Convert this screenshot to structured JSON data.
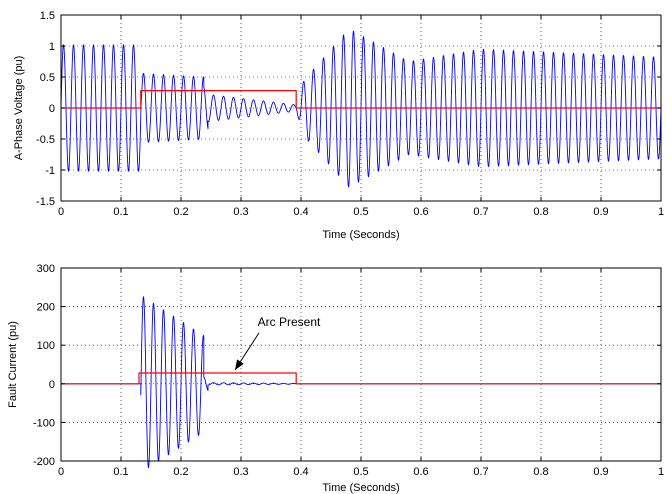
{
  "chart_data": [
    {
      "type": "line",
      "title": "",
      "xlabel": "Time (Seconds)",
      "ylabel": "A-Phase Voltage (pu)",
      "xlim": [
        0,
        1
      ],
      "ylim": [
        -1.5,
        1.5
      ],
      "xticks": [
        0,
        0.1,
        0.2,
        0.3,
        0.4,
        0.5,
        0.6,
        0.7,
        0.8,
        0.9,
        1
      ],
      "xtick_labels": [
        "0",
        "0.1",
        "0.2",
        "0.3",
        "0.4",
        "0.5",
        "0.6",
        "0.7",
        "0.8",
        "0.9",
        "1"
      ],
      "yticks": [
        1.5,
        1,
        0.5,
        0,
        -0.5,
        -1,
        -1.5
      ],
      "ytick_labels": [
        "1.5",
        "1",
        "0.5",
        "0",
        "-0.5",
        "-1",
        "-1.5"
      ],
      "grid": true,
      "series": [
        {
          "color": "#0000ff",
          "kind": "oscillation",
          "segments": [
            {
              "t": [
                0.0,
                0.133
              ],
              "amp": [
                1.02,
                1.02
              ]
            },
            {
              "t": [
                0.133,
                0.238
              ],
              "amp": [
                0.56,
                0.5
              ]
            },
            {
              "t": [
                0.238,
                0.245
              ],
              "amp": [
                0.35,
                0.35
              ]
            },
            {
              "t": [
                0.245,
                0.392
              ],
              "amp": [
                0.22,
                0.05
              ]
            },
            {
              "t": [
                0.392,
                0.405
              ],
              "amp": [
                0.05,
                0.45
              ]
            },
            {
              "t": [
                0.405,
                0.48
              ],
              "amp": [
                0.45,
                1.28
              ]
            },
            {
              "t": [
                0.48,
                0.58
              ],
              "amp": [
                1.28,
                0.75
              ]
            },
            {
              "t": [
                0.58,
                0.7
              ],
              "amp": [
                0.75,
                0.95
              ]
            },
            {
              "t": [
                0.7,
                1.0
              ],
              "amp": [
                0.95,
                0.82
              ]
            }
          ]
        },
        {
          "color": "#ff0000",
          "kind": "step",
          "x": [
            0,
            0.133,
            0.133,
            0.392,
            0.392,
            1
          ],
          "y": [
            0,
            0,
            0.28,
            0.28,
            0,
            0
          ]
        }
      ]
    },
    {
      "type": "line",
      "title": "",
      "xlabel": "Time (Seconds)",
      "ylabel": "Fault Current (pu)",
      "xlim": [
        0,
        1
      ],
      "ylim": [
        -200,
        300
      ],
      "xticks": [
        0,
        0.1,
        0.2,
        0.3,
        0.4,
        0.5,
        0.6,
        0.7,
        0.8,
        0.9,
        1
      ],
      "xtick_labels": [
        "0",
        "0.1",
        "0.2",
        "0.3",
        "0.4",
        "0.5",
        "0.6",
        "0.7",
        "0.8",
        "0.9",
        "1"
      ],
      "yticks": [
        300,
        200,
        100,
        0,
        -100,
        -200
      ],
      "ytick_labels": [
        "300",
        "200",
        "100",
        "0",
        "-100",
        "-200"
      ],
      "grid": true,
      "series": [
        {
          "color": "#0000ff",
          "kind": "oscillation",
          "segments": [
            {
              "t": [
                0.0,
                0.133
              ],
              "amp": [
                0,
                0
              ]
            },
            {
              "t": [
                0.133,
                0.238
              ],
              "amp": [
                230,
                125
              ]
            },
            {
              "t": [
                0.238,
                0.245
              ],
              "amp": [
                18,
                18
              ]
            },
            {
              "t": [
                0.245,
                0.392
              ],
              "amp": [
                3,
                1
              ]
            },
            {
              "t": [
                0.392,
                1.0
              ],
              "amp": [
                0,
                0
              ]
            }
          ]
        },
        {
          "color": "#ff0000",
          "kind": "step",
          "x": [
            0,
            0.13,
            0.13,
            0.392,
            0.392,
            1
          ],
          "y": [
            0,
            0,
            28,
            28,
            0,
            0
          ]
        }
      ],
      "annotation": {
        "text": "Arc Present",
        "label_at": [
          0.38,
          150
        ],
        "arrow_to": [
          0.29,
          28
        ]
      }
    }
  ]
}
